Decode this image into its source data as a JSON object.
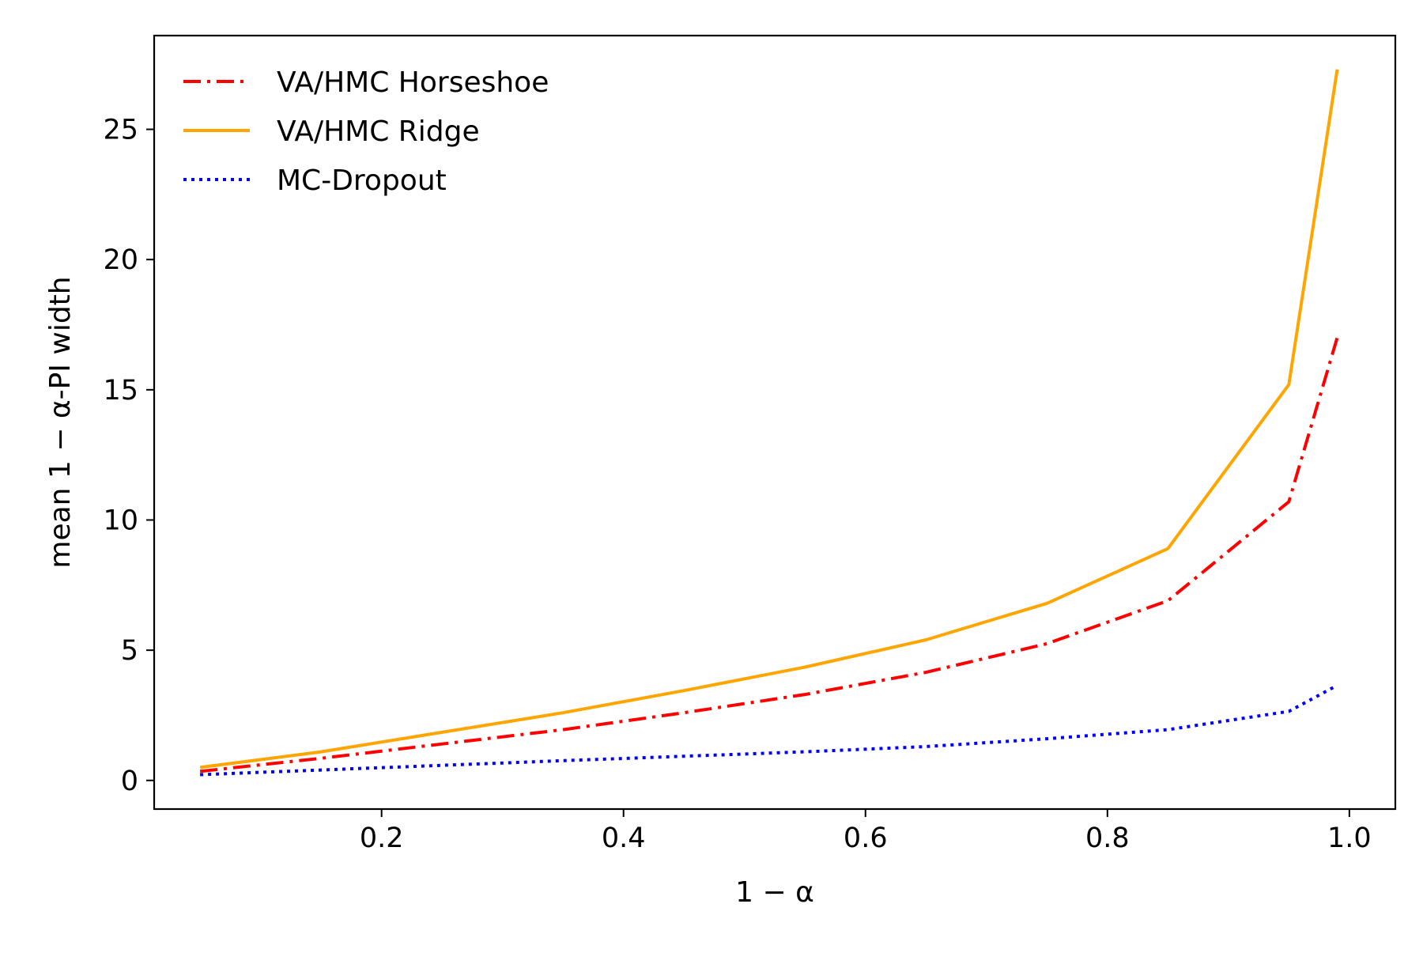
{
  "chart_data": {
    "type": "line",
    "title": "",
    "xlabel": "1 − α",
    "ylabel": "mean 1 − α-PI width",
    "xlim": [
      0.012,
      1.038
    ],
    "ylim": [
      -1.1,
      28.6
    ],
    "xticks": [
      0.2,
      0.4,
      0.6,
      0.8,
      1.0
    ],
    "xtick_labels": [
      "0.2",
      "0.4",
      "0.6",
      "0.8",
      "1.0"
    ],
    "yticks": [
      0,
      5,
      10,
      15,
      20,
      25
    ],
    "ytick_labels": [
      "0",
      "5",
      "10",
      "15",
      "20",
      "25"
    ],
    "grid": false,
    "legend_position": "top-left",
    "x": [
      0.05,
      0.15,
      0.25,
      0.35,
      0.45,
      0.55,
      0.65,
      0.75,
      0.85,
      0.95,
      0.99
    ],
    "series": [
      {
        "name": "VA/HMC Horseshoe",
        "color": "#ff0000",
        "style": "dashdot",
        "values": [
          0.35,
          0.85,
          1.4,
          1.95,
          2.6,
          3.3,
          4.15,
          5.25,
          6.9,
          10.7,
          17.0
        ]
      },
      {
        "name": "VA/HMC Ridge",
        "color": "#ffa500",
        "style": "solid",
        "values": [
          0.5,
          1.1,
          1.85,
          2.6,
          3.45,
          4.35,
          5.4,
          6.8,
          8.9,
          15.2,
          27.3
        ]
      },
      {
        "name": "MC-Dropout",
        "color": "#0000ff",
        "style": "dotted",
        "values": [
          0.22,
          0.4,
          0.58,
          0.76,
          0.93,
          1.1,
          1.3,
          1.6,
          1.95,
          2.65,
          3.65
        ]
      }
    ]
  }
}
